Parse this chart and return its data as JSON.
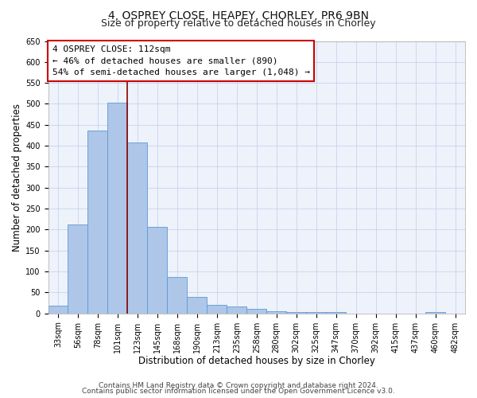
{
  "title": "4, OSPREY CLOSE, HEAPEY, CHORLEY, PR6 9BN",
  "subtitle": "Size of property relative to detached houses in Chorley",
  "xlabel": "Distribution of detached houses by size in Chorley",
  "ylabel": "Number of detached properties",
  "bar_labels": [
    "33sqm",
    "56sqm",
    "78sqm",
    "101sqm",
    "123sqm",
    "145sqm",
    "168sqm",
    "190sqm",
    "213sqm",
    "235sqm",
    "258sqm",
    "280sqm",
    "302sqm",
    "325sqm",
    "347sqm",
    "370sqm",
    "392sqm",
    "415sqm",
    "437sqm",
    "460sqm",
    "482sqm"
  ],
  "bar_values": [
    18,
    212,
    437,
    503,
    408,
    207,
    86,
    40,
    20,
    17,
    11,
    6,
    4,
    4,
    4,
    0,
    0,
    0,
    0,
    3,
    0
  ],
  "bar_color": "#aec6e8",
  "bar_edgecolor": "#5b9bd5",
  "annotation_line1": "4 OSPREY CLOSE: 112sqm",
  "annotation_line2": "← 46% of detached houses are smaller (890)",
  "annotation_line3": "54% of semi-detached houses are larger (1,048) →",
  "vline_color": "#8b0000",
  "vline_x_index": 3.5,
  "ylim": [
    0,
    650
  ],
  "yticks": [
    0,
    50,
    100,
    150,
    200,
    250,
    300,
    350,
    400,
    450,
    500,
    550,
    600,
    650
  ],
  "footnote1": "Contains HM Land Registry data © Crown copyright and database right 2024.",
  "footnote2": "Contains public sector information licensed under the Open Government Licence v3.0.",
  "bg_color": "#ffffff",
  "plot_bg_color": "#eef2fb",
  "grid_color": "#c0cfe8",
  "title_fontsize": 10,
  "subtitle_fontsize": 9,
  "axis_label_fontsize": 8.5,
  "tick_fontsize": 7,
  "annotation_fontsize": 8,
  "footnote_fontsize": 6.5
}
